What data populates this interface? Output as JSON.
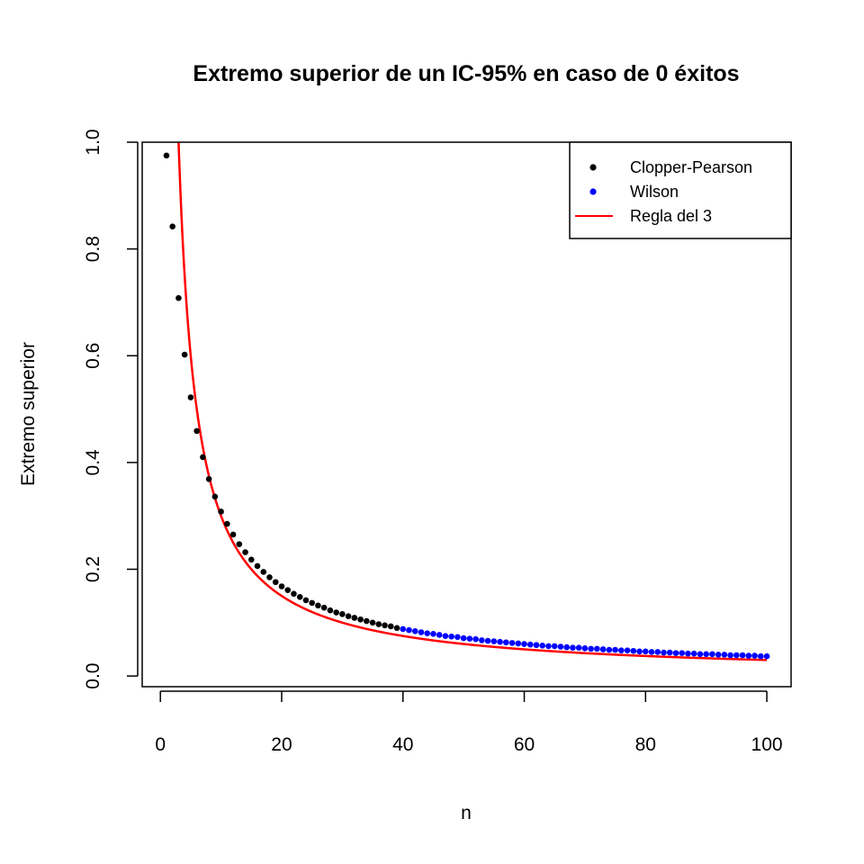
{
  "chart_data": {
    "type": "scatter",
    "title": "Extremo superior de un IC-95% en caso de 0 éxitos",
    "xlabel": "n",
    "ylabel": "Extremo superior",
    "xlim": [
      -3,
      104
    ],
    "ylim": [
      -0.02,
      1.0
    ],
    "x_ticks": [
      0,
      20,
      40,
      60,
      80,
      100
    ],
    "x_tick_labels": [
      "0",
      "20",
      "40",
      "60",
      "80",
      "100"
    ],
    "y_ticks": [
      0.0,
      0.2,
      0.4,
      0.6,
      0.8,
      1.0
    ],
    "y_tick_labels": [
      "0.0",
      "0.2",
      "0.4",
      "0.6",
      "0.8",
      "1.0"
    ],
    "grid": false,
    "legend_position": "top-right",
    "series": [
      {
        "name": "Clopper-Pearson",
        "kind": "points",
        "color": "#000000",
        "x": [
          1,
          2,
          3,
          4,
          5,
          6,
          7,
          8,
          9,
          10,
          11,
          12,
          13,
          14,
          15,
          16,
          17,
          18,
          19,
          20,
          21,
          22,
          23,
          24,
          25,
          26,
          27,
          28,
          29,
          30,
          31,
          32,
          33,
          34,
          35,
          36,
          37,
          38,
          39
        ],
        "y": [
          0.975,
          0.842,
          0.708,
          0.602,
          0.522,
          0.459,
          0.41,
          0.369,
          0.336,
          0.308,
          0.285,
          0.265,
          0.247,
          0.232,
          0.218,
          0.206,
          0.195,
          0.185,
          0.176,
          0.168,
          0.161,
          0.154,
          0.148,
          0.142,
          0.137,
          0.132,
          0.128,
          0.123,
          0.119,
          0.116,
          0.112,
          0.109,
          0.106,
          0.103,
          0.1,
          0.097,
          0.095,
          0.093,
          0.09
        ]
      },
      {
        "name": "Wilson",
        "kind": "points",
        "color": "#0000ff",
        "x": [
          40,
          41,
          42,
          43,
          44,
          45,
          46,
          47,
          48,
          49,
          50,
          51,
          52,
          53,
          54,
          55,
          56,
          57,
          58,
          59,
          60,
          61,
          62,
          63,
          64,
          65,
          66,
          67,
          68,
          69,
          70,
          71,
          72,
          73,
          74,
          75,
          76,
          77,
          78,
          79,
          80,
          81,
          82,
          83,
          84,
          85,
          86,
          87,
          88,
          89,
          90,
          91,
          92,
          93,
          94,
          95,
          96,
          97,
          98,
          99,
          100
        ],
        "y": [
          0.088,
          0.086,
          0.084,
          0.082,
          0.08,
          0.079,
          0.077,
          0.075,
          0.074,
          0.073,
          0.071,
          0.07,
          0.069,
          0.067,
          0.066,
          0.065,
          0.064,
          0.063,
          0.062,
          0.061,
          0.06,
          0.059,
          0.058,
          0.057,
          0.056,
          0.056,
          0.055,
          0.054,
          0.053,
          0.053,
          0.052,
          0.051,
          0.051,
          0.05,
          0.049,
          0.049,
          0.048,
          0.048,
          0.047,
          0.046,
          0.046,
          0.045,
          0.045,
          0.044,
          0.044,
          0.043,
          0.043,
          0.042,
          0.042,
          0.041,
          0.041,
          0.041,
          0.04,
          0.04,
          0.039,
          0.039,
          0.039,
          0.038,
          0.038,
          0.037,
          0.037
        ]
      },
      {
        "name": "Regla del 3",
        "kind": "line",
        "color": "#ff0000",
        "formula": "3/n"
      }
    ]
  }
}
